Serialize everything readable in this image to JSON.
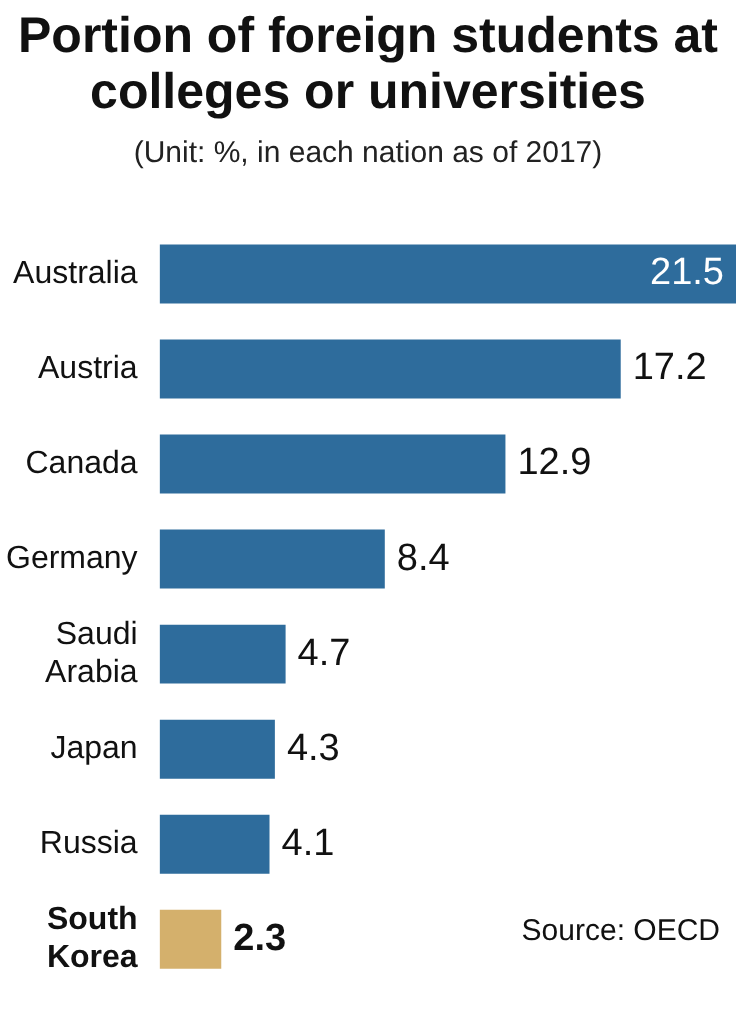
{
  "chart_data": {
    "type": "bar",
    "orientation": "horizontal",
    "title": "Portion of foreign students at colleges or universities",
    "subtitle": "(Unit: %, in each nation as of 2017)",
    "categories": [
      "Australia",
      "Austria",
      "Canada",
      "Germany",
      "Saudi Arabia",
      "Japan",
      "Russia",
      "South Korea"
    ],
    "values": [
      21.5,
      17.2,
      12.9,
      8.4,
      4.7,
      4.3,
      4.1,
      2.3
    ],
    "colors": [
      "#2e6c9c",
      "#2e6c9c",
      "#2e6c9c",
      "#2e6c9c",
      "#2e6c9c",
      "#2e6c9c",
      "#2e6c9c",
      "#d4b06c"
    ],
    "data_labels": true,
    "grid": false,
    "legend": false,
    "annotations": [
      "Source: OECD"
    ]
  }
}
